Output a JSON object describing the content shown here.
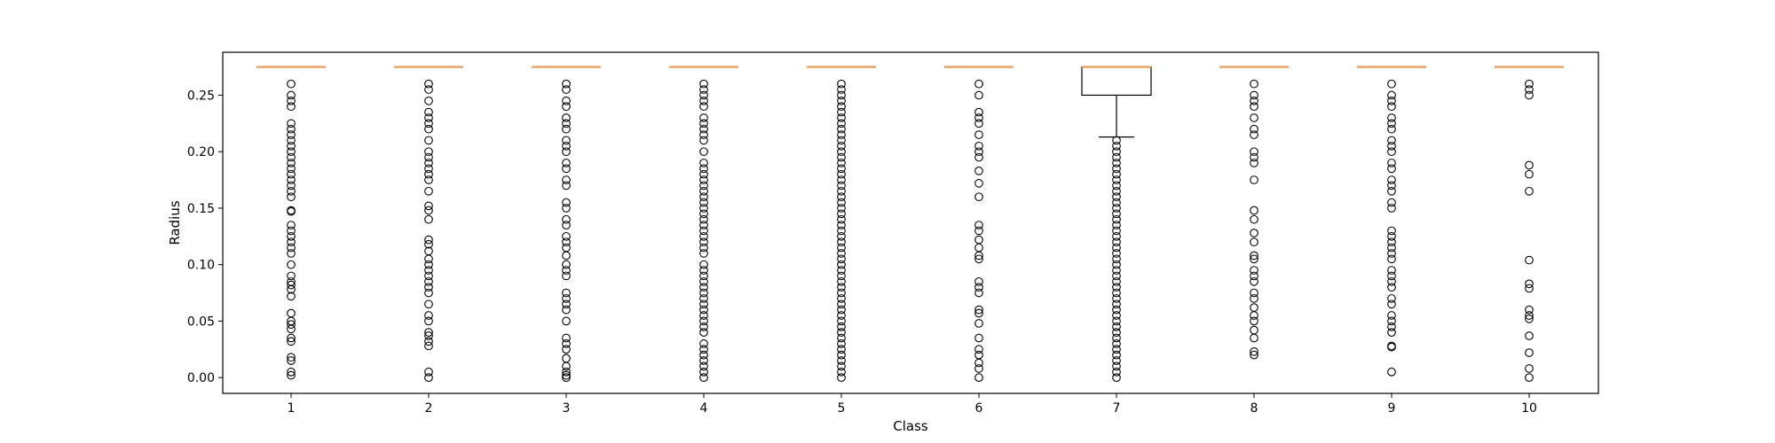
{
  "chart_data": {
    "type": "boxplot",
    "xlabel": "Class",
    "ylabel": "Radius",
    "ylim": [
      -0.014,
      0.288
    ],
    "yticks": [
      "0.00",
      "0.05",
      "0.10",
      "0.15",
      "0.20",
      "0.25"
    ],
    "ytick_values": [
      0.0,
      0.05,
      0.1,
      0.15,
      0.2,
      0.25
    ],
    "categories": [
      "1",
      "2",
      "3",
      "4",
      "5",
      "6",
      "7",
      "8",
      "9",
      "10"
    ],
    "grid": false,
    "legend": "none",
    "colors": {
      "median": "#e8a060",
      "box": "#000000",
      "outlier": "#000000"
    },
    "boxes": [
      {
        "category": "1",
        "q1": 0.275,
        "median": 0.275,
        "q3": 0.275,
        "whisker_low": 0.275,
        "whisker_high": 0.275,
        "outliers": [
          0.26,
          0.25,
          0.245,
          0.24,
          0.225,
          0.22,
          0.215,
          0.21,
          0.205,
          0.2,
          0.195,
          0.19,
          0.185,
          0.18,
          0.175,
          0.17,
          0.165,
          0.16,
          0.148,
          0.147,
          0.135,
          0.13,
          0.125,
          0.12,
          0.115,
          0.11,
          0.1,
          0.09,
          0.085,
          0.082,
          0.078,
          0.072,
          0.057,
          0.05,
          0.047,
          0.043,
          0.035,
          0.032,
          0.018,
          0.015,
          0.005,
          0.002
        ]
      },
      {
        "category": "2",
        "q1": 0.275,
        "median": 0.275,
        "q3": 0.275,
        "whisker_low": 0.275,
        "whisker_high": 0.275,
        "outliers": [
          0.26,
          0.255,
          0.245,
          0.235,
          0.23,
          0.225,
          0.22,
          0.21,
          0.2,
          0.195,
          0.19,
          0.185,
          0.18,
          0.175,
          0.165,
          0.152,
          0.148,
          0.14,
          0.122,
          0.118,
          0.112,
          0.105,
          0.1,
          0.095,
          0.09,
          0.085,
          0.08,
          0.075,
          0.065,
          0.055,
          0.05,
          0.04,
          0.037,
          0.032,
          0.028,
          0.005,
          0.0
        ]
      },
      {
        "category": "3",
        "q1": 0.275,
        "median": 0.275,
        "q3": 0.275,
        "whisker_low": 0.275,
        "whisker_high": 0.275,
        "outliers": [
          0.26,
          0.255,
          0.245,
          0.24,
          0.23,
          0.225,
          0.22,
          0.21,
          0.205,
          0.2,
          0.19,
          0.185,
          0.175,
          0.17,
          0.155,
          0.15,
          0.14,
          0.135,
          0.125,
          0.12,
          0.115,
          0.108,
          0.1,
          0.095,
          0.09,
          0.075,
          0.07,
          0.065,
          0.06,
          0.05,
          0.035,
          0.03,
          0.025,
          0.017,
          0.01,
          0.005,
          0.002,
          0.0
        ]
      },
      {
        "category": "4",
        "q1": 0.275,
        "median": 0.275,
        "q3": 0.275,
        "whisker_low": 0.275,
        "whisker_high": 0.275,
        "outliers": [
          0.26,
          0.255,
          0.25,
          0.245,
          0.24,
          0.23,
          0.225,
          0.22,
          0.215,
          0.21,
          0.2,
          0.19,
          0.185,
          0.18,
          0.175,
          0.17,
          0.165,
          0.16,
          0.155,
          0.15,
          0.145,
          0.14,
          0.135,
          0.13,
          0.125,
          0.12,
          0.115,
          0.11,
          0.1,
          0.095,
          0.09,
          0.085,
          0.08,
          0.075,
          0.07,
          0.065,
          0.06,
          0.055,
          0.05,
          0.045,
          0.04,
          0.03,
          0.025,
          0.02,
          0.015,
          0.01,
          0.005,
          0.0
        ]
      },
      {
        "category": "5",
        "q1": 0.275,
        "median": 0.275,
        "q3": 0.275,
        "whisker_low": 0.275,
        "whisker_high": 0.275,
        "outliers": [
          0.26,
          0.255,
          0.25,
          0.245,
          0.24,
          0.235,
          0.23,
          0.225,
          0.22,
          0.215,
          0.21,
          0.205,
          0.2,
          0.195,
          0.19,
          0.185,
          0.18,
          0.175,
          0.17,
          0.165,
          0.16,
          0.155,
          0.15,
          0.145,
          0.14,
          0.135,
          0.13,
          0.125,
          0.12,
          0.115,
          0.11,
          0.105,
          0.1,
          0.095,
          0.09,
          0.085,
          0.08,
          0.075,
          0.07,
          0.065,
          0.06,
          0.055,
          0.05,
          0.045,
          0.04,
          0.035,
          0.03,
          0.025,
          0.02,
          0.015,
          0.01,
          0.005,
          0.0
        ]
      },
      {
        "category": "6",
        "q1": 0.275,
        "median": 0.275,
        "q3": 0.275,
        "whisker_low": 0.275,
        "whisker_high": 0.275,
        "outliers": [
          0.26,
          0.25,
          0.235,
          0.23,
          0.225,
          0.215,
          0.205,
          0.2,
          0.195,
          0.183,
          0.172,
          0.16,
          0.135,
          0.13,
          0.122,
          0.115,
          0.108,
          0.105,
          0.085,
          0.08,
          0.075,
          0.06,
          0.057,
          0.048,
          0.035,
          0.025,
          0.02,
          0.013,
          0.008,
          0.0
        ]
      },
      {
        "category": "7",
        "q1": 0.25,
        "median": 0.275,
        "q3": 0.275,
        "whisker_low": 0.213,
        "whisker_high": 0.275,
        "outliers": [
          0.21,
          0.205,
          0.2,
          0.195,
          0.19,
          0.185,
          0.18,
          0.175,
          0.17,
          0.165,
          0.16,
          0.155,
          0.15,
          0.145,
          0.14,
          0.135,
          0.13,
          0.125,
          0.12,
          0.115,
          0.11,
          0.105,
          0.1,
          0.095,
          0.09,
          0.085,
          0.08,
          0.075,
          0.07,
          0.065,
          0.06,
          0.055,
          0.05,
          0.045,
          0.04,
          0.035,
          0.03,
          0.025,
          0.02,
          0.015,
          0.01,
          0.005,
          0.0
        ]
      },
      {
        "category": "8",
        "q1": 0.275,
        "median": 0.275,
        "q3": 0.275,
        "whisker_low": 0.275,
        "whisker_high": 0.275,
        "outliers": [
          0.26,
          0.25,
          0.245,
          0.24,
          0.23,
          0.22,
          0.215,
          0.2,
          0.195,
          0.19,
          0.175,
          0.148,
          0.14,
          0.128,
          0.12,
          0.108,
          0.105,
          0.095,
          0.09,
          0.085,
          0.075,
          0.07,
          0.062,
          0.055,
          0.05,
          0.042,
          0.035,
          0.023,
          0.02
        ]
      },
      {
        "category": "9",
        "q1": 0.275,
        "median": 0.275,
        "q3": 0.275,
        "whisker_low": 0.275,
        "whisker_high": 0.275,
        "outliers": [
          0.26,
          0.25,
          0.245,
          0.24,
          0.23,
          0.225,
          0.22,
          0.21,
          0.205,
          0.2,
          0.19,
          0.185,
          0.175,
          0.17,
          0.165,
          0.155,
          0.15,
          0.13,
          0.125,
          0.12,
          0.115,
          0.11,
          0.105,
          0.095,
          0.09,
          0.085,
          0.08,
          0.07,
          0.065,
          0.055,
          0.05,
          0.045,
          0.04,
          0.028,
          0.027,
          0.005
        ]
      },
      {
        "category": "10",
        "q1": 0.275,
        "median": 0.275,
        "q3": 0.275,
        "whisker_low": 0.275,
        "whisker_high": 0.275,
        "outliers": [
          0.26,
          0.255,
          0.25,
          0.188,
          0.18,
          0.165,
          0.104,
          0.083,
          0.079,
          0.06,
          0.055,
          0.052,
          0.037,
          0.022,
          0.008,
          0.0
        ]
      }
    ]
  }
}
